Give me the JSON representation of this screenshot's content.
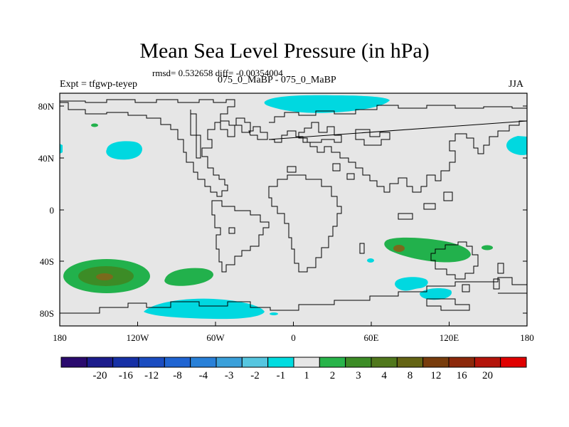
{
  "title": "Mean Sea Level Pressure (in hPa)",
  "stats": "rmsd= 0.532658 diff= -0.00354004",
  "subtitle": "075_0_MaBP - 075_0_MaBP",
  "experiment": "Expt = tfgwp-teyep",
  "season": "JJA",
  "x_ticks": [
    "180",
    "120W",
    "60W",
    "0",
    "60E",
    "120E",
    "180"
  ],
  "y_ticks": [
    "80N",
    "40N",
    "0",
    "40S",
    "80S"
  ],
  "colorbar": {
    "colors": [
      "#2a0a6e",
      "#1c1c8c",
      "#1630a6",
      "#1a4cc0",
      "#1f64d2",
      "#2880d8",
      "#3aa0da",
      "#56c6e0",
      "#00dce0",
      "#e6e6e6",
      "#28b44a",
      "#3c8c26",
      "#50781c",
      "#646414",
      "#783c0c",
      "#8c280a",
      "#b4140a",
      "#e00000"
    ],
    "labels": [
      "-20",
      "-16",
      "-12",
      "-8",
      "-4",
      "-3",
      "-2",
      "-1",
      "1",
      "2",
      "3",
      "4",
      "8",
      "12",
      "16",
      "20"
    ]
  },
  "colors": {
    "land_ocean": "#e6e6e6",
    "positive": "#22b14c",
    "positive_strong": "#3c8c26",
    "positive_core": "#7a6a1c",
    "negative": "#00d8e0"
  }
}
